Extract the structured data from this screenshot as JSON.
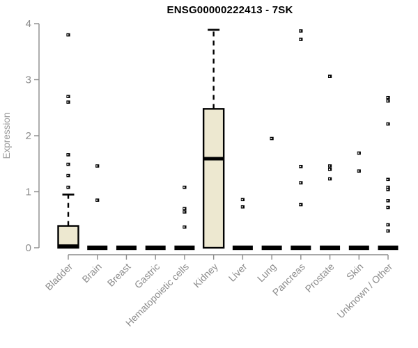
{
  "title": "ENSG00000222413 - 7SK",
  "chart_data": {
    "type": "boxplot",
    "title": "ENSG00000222413 - 7SK",
    "xlabel": "",
    "ylabel": "Expression",
    "ylim": [
      0,
      4
    ],
    "yticks": [
      "0",
      "1",
      "2",
      "3",
      "4"
    ],
    "grid": false,
    "legend": null,
    "categories": [
      "Bladder",
      "Brain",
      "Breast",
      "Gastric",
      "Hematopoietic cells",
      "Kidney",
      "Liver",
      "Lung",
      "Pancreas",
      "Prostate",
      "Skin",
      "Unknown / Other"
    ],
    "boxes": [
      {
        "category": "Bladder",
        "whisker_low": 0,
        "q1": 0,
        "median": 0.03,
        "q3": 0.39,
        "whisker_high": 0.95,
        "outliers": [
          3.8,
          2.7,
          2.6,
          1.66,
          1.49,
          1.29,
          1.08
        ]
      },
      {
        "category": "Brain",
        "whisker_low": 0,
        "q1": 0,
        "median": 0,
        "q3": 0,
        "whisker_high": 0,
        "outliers": [
          1.46,
          0.85
        ]
      },
      {
        "category": "Breast",
        "whisker_low": 0,
        "q1": 0,
        "median": 0,
        "q3": 0,
        "whisker_high": 0,
        "outliers": []
      },
      {
        "category": "Gastric",
        "whisker_low": 0,
        "q1": 0,
        "median": 0,
        "q3": 0,
        "whisker_high": 0,
        "outliers": []
      },
      {
        "category": "Hematopoietic cells",
        "whisker_low": 0,
        "q1": 0,
        "median": 0,
        "q3": 0,
        "whisker_high": 0,
        "outliers": [
          1.08,
          0.7,
          0.64,
          0.37
        ]
      },
      {
        "category": "Kidney",
        "whisker_low": 0,
        "q1": 0,
        "median": 1.59,
        "q3": 2.48,
        "whisker_high": 3.89,
        "outliers": []
      },
      {
        "category": "Liver",
        "whisker_low": 0,
        "q1": 0,
        "median": 0,
        "q3": 0,
        "whisker_high": 0,
        "outliers": [
          0.86,
          0.73
        ]
      },
      {
        "category": "Lung",
        "whisker_low": 0,
        "q1": 0,
        "median": 0,
        "q3": 0,
        "whisker_high": 0,
        "outliers": [
          1.95
        ]
      },
      {
        "category": "Pancreas",
        "whisker_low": 0,
        "q1": 0,
        "median": 0,
        "q3": 0,
        "whisker_high": 0,
        "outliers": [
          3.87,
          3.72,
          1.45,
          1.16,
          0.77
        ]
      },
      {
        "category": "Prostate",
        "whisker_low": 0,
        "q1": 0,
        "median": 0,
        "q3": 0,
        "whisker_high": 0,
        "outliers": [
          3.06,
          1.46,
          1.4,
          1.23
        ]
      },
      {
        "category": "Skin",
        "whisker_low": 0,
        "q1": 0,
        "median": 0,
        "q3": 0,
        "whisker_high": 0,
        "outliers": [
          1.69,
          1.37
        ]
      },
      {
        "category": "Unknown / Other",
        "whisker_low": 0,
        "q1": 0,
        "median": 0,
        "q3": 0,
        "whisker_high": 0,
        "outliers": [
          2.68,
          2.62,
          2.21,
          1.22,
          1.08,
          1.04,
          0.84,
          0.72,
          0.41,
          0.3
        ]
      }
    ],
    "colors": {
      "box_fill": "#EDE8D0",
      "box_border": "#000000",
      "median": "#000000",
      "whisker": "#000000",
      "outlier": "#000000",
      "axis": "#8C8C8C",
      "tick_label": "#8C8C8C",
      "axis_label": "#9A9A9A",
      "title": "#000000",
      "background": "#FFFFFF"
    }
  }
}
